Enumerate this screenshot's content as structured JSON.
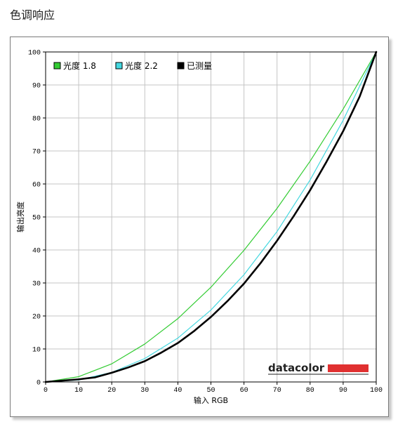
{
  "page": {
    "title": "色调响应"
  },
  "chart_data": {
    "type": "line",
    "title": "",
    "xlabel": "输入 RGB",
    "ylabel": "输出亮度",
    "xlim": [
      0,
      100
    ],
    "ylim": [
      0,
      100
    ],
    "xticks": [
      0,
      10,
      20,
      30,
      40,
      50,
      60,
      70,
      80,
      90,
      100
    ],
    "yticks": [
      0,
      10,
      20,
      30,
      40,
      50,
      60,
      70,
      80,
      90,
      100
    ],
    "grid": true,
    "legend_position": "top-left",
    "series": [
      {
        "name": "光度 1.8",
        "color": "#33cc33",
        "x": [
          0,
          10,
          20,
          30,
          40,
          50,
          60,
          70,
          80,
          90,
          100
        ],
        "y": [
          0,
          1.6,
          5.5,
          11.5,
          19.2,
          28.7,
          39.9,
          52.6,
          66.9,
          82.7,
          100
        ]
      },
      {
        "name": "光度 2.2",
        "color": "#44d8e0",
        "x": [
          0,
          10,
          20,
          30,
          40,
          50,
          60,
          70,
          80,
          90,
          100
        ],
        "y": [
          0,
          0.6,
          2.9,
          7.1,
          13.3,
          21.8,
          32.5,
          45.6,
          61.2,
          79.3,
          100
        ]
      },
      {
        "name": "已测量",
        "color": "#000000",
        "x": [
          0,
          10,
          15,
          20,
          25,
          30,
          35,
          40,
          45,
          50,
          55,
          60,
          65,
          70,
          75,
          80,
          85,
          90,
          95,
          100
        ],
        "y": [
          0,
          0.8,
          1.4,
          2.8,
          4.4,
          6.3,
          8.9,
          11.8,
          15.5,
          19.7,
          24.5,
          29.8,
          36.0,
          42.8,
          50.2,
          58.1,
          66.8,
          76.0,
          86.5,
          100
        ]
      }
    ]
  },
  "logo": {
    "text": "datacolor",
    "bar_color": "#e03030"
  }
}
